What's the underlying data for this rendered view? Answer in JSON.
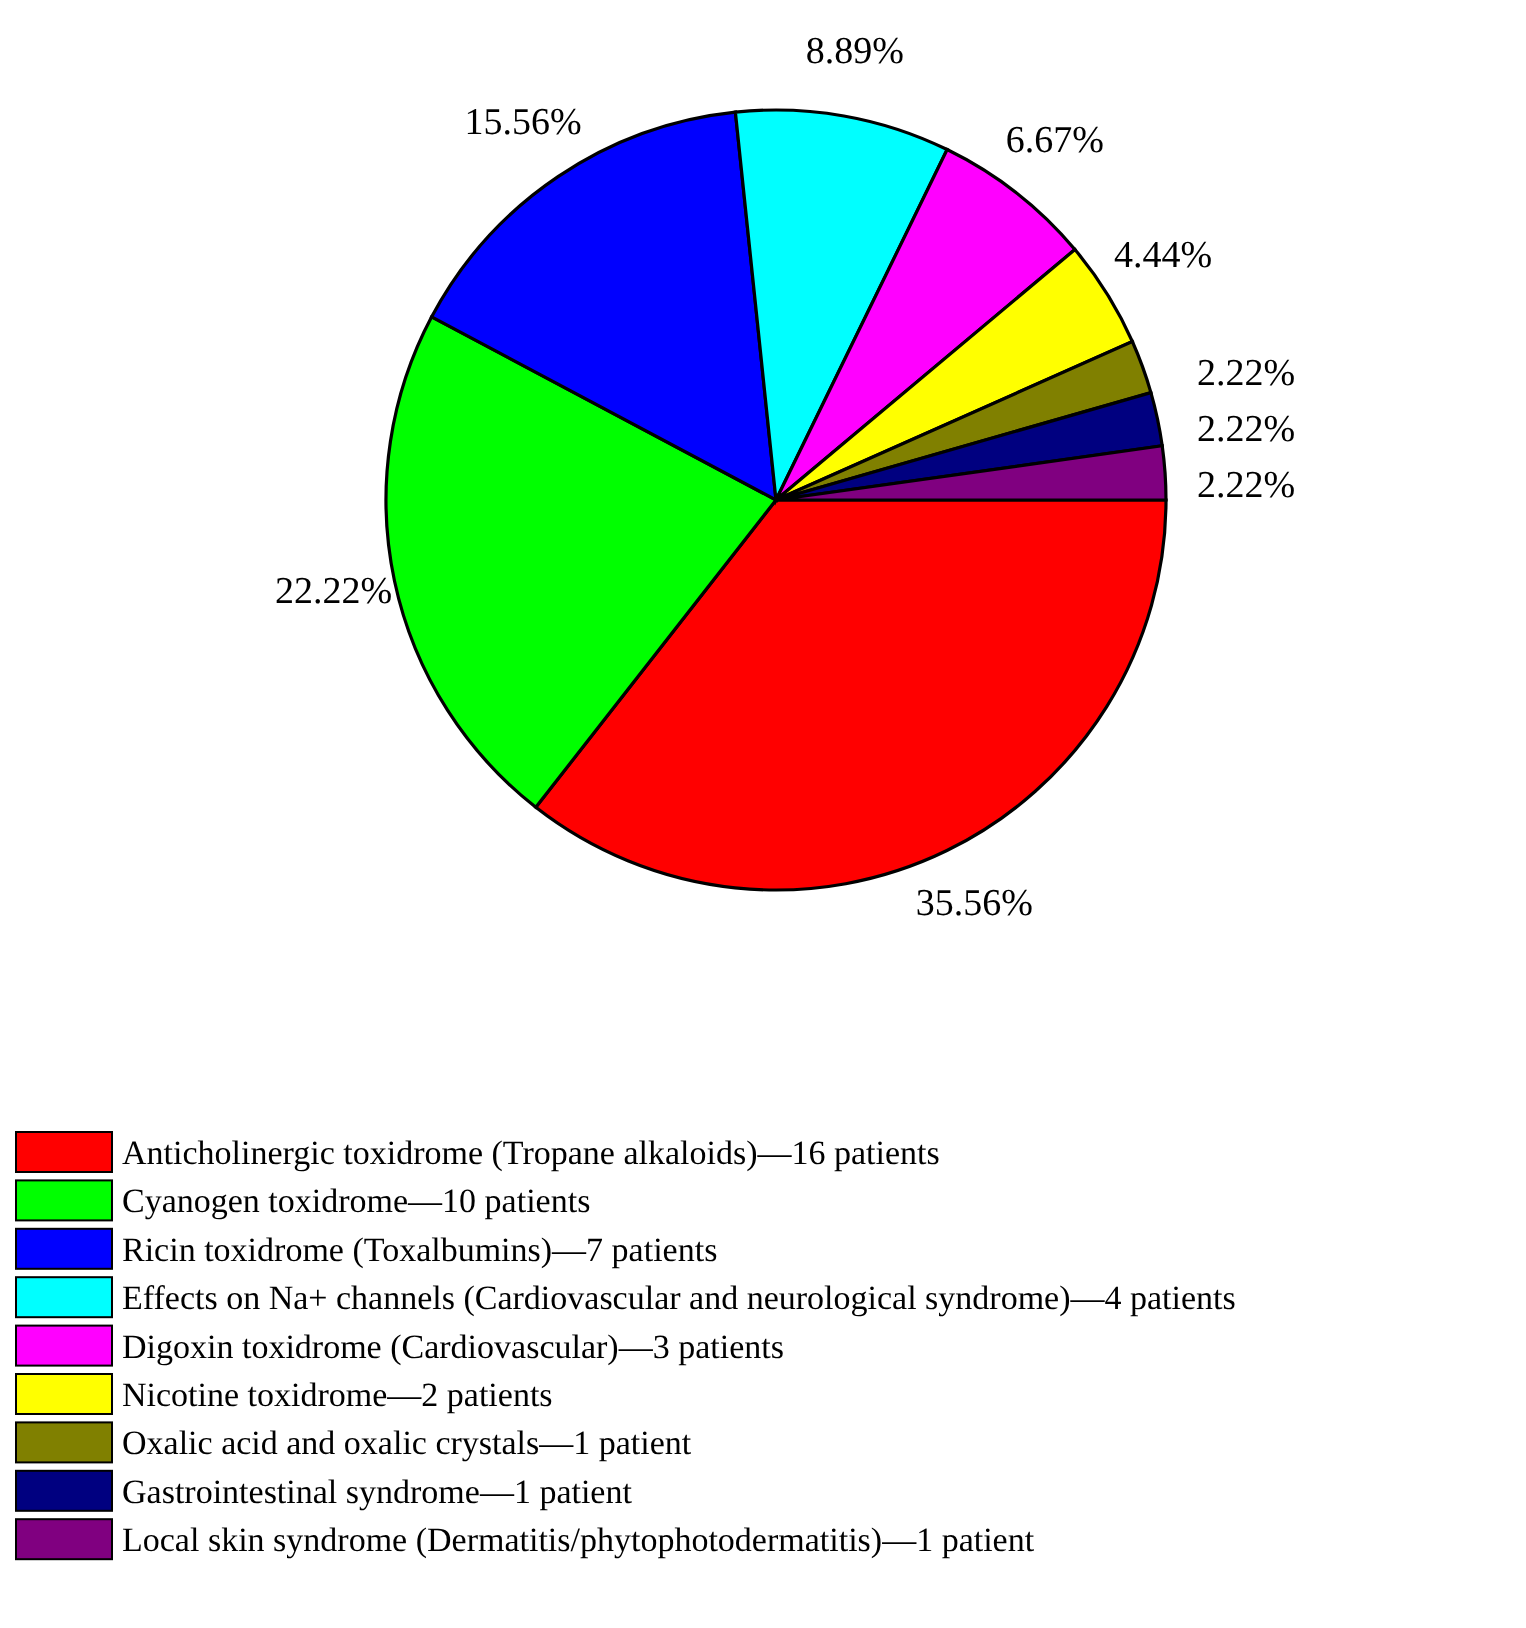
{
  "chart_data": {
    "type": "pie",
    "categories": [
      "Anticholinergic toxidrome (Tropane alkaloids)—16 patients",
      "Cyanogen toxidrome—10 patients",
      "Ricin toxidrome (Toxalbumins)—7 patients",
      "Effects on Na+ channels (Cardiovascular and neurological syndrome)—4 patients",
      "Digoxin toxidrome (Cardiovascular)—3 patients",
      "Nicotine toxidrome—2 patients",
      "Oxalic acid and oxalic crystals—1 patient",
      "Gastrointestinal syndrome—1 patient",
      "Local skin syndrome (Dermatitis/phytophotodermatitis)—1 patient"
    ],
    "values": [
      35.56,
      22.22,
      15.56,
      8.89,
      6.67,
      4.44,
      2.22,
      2.22,
      2.22
    ],
    "value_labels": [
      "35.56%",
      "22.22%",
      "15.56%",
      "8.89%",
      "6.67%",
      "4.44%",
      "2.22%",
      "2.22%",
      "2.22%"
    ],
    "colors": [
      "#ff0000",
      "#00ff00",
      "#0000ff",
      "#00ffff",
      "#ff00ff",
      "#ffff00",
      "#808000",
      "#000080",
      "#800080"
    ],
    "legend": "bottom"
  }
}
